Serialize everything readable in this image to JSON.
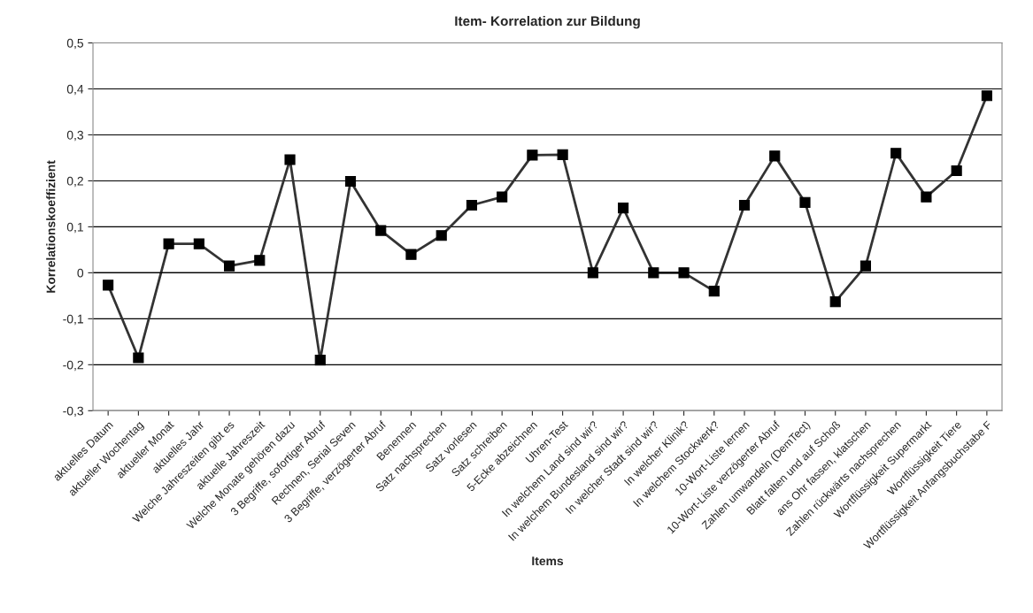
{
  "chart_data": {
    "type": "line",
    "title": "Item- Korrelation zur Bildung",
    "xlabel": "Items",
    "ylabel": "Korrelationskoeffizient",
    "categories": [
      "aktuelles Datum",
      "aktueller Wochentag",
      "aktueller Monat",
      "aktuelles Jahr",
      "Welche Jahreszeiten gibt es",
      "aktuelle Jahreszeit",
      "Welche Monate gehören dazu",
      "3 Begriffe, sofortiger Abruf",
      "Rechnen, Serial Seven",
      "3 Begriffe, verzögerter Abruf",
      "Benennen",
      "Satz nachsprechen",
      "Satz vorlesen",
      "Satz schreiben",
      "5-Ecke abzeichnen",
      "Uhren-Test",
      "In welchem Land sind wir?",
      "In welchem Bundesland sind wir?",
      "In welcher Stadt sind wir?",
      "In welcher Klinik?",
      "In welchem Stockwerk?",
      "10-Wort-Liste lernen",
      "10-Wort-Liste verzögerter Abruf",
      "Zahlen umwandeln (DemTect)",
      "Blatt falten und auf Schoß",
      "ans Ohr fassen, klatschen",
      "Zahlen rückwärts nachsprechen",
      "Wortflüssigkeit Supermarkt",
      "Wortflüssigkeit Tiere",
      "Wortflüssigkeit Anfangsbuchstabe F"
    ],
    "series": [
      {
        "color": "#333333",
        "values": [
          -0.027,
          -0.185,
          0.063,
          0.063,
          0.015,
          0.027,
          0.246,
          -0.19,
          0.199,
          0.092,
          0.04,
          0.081,
          0.147,
          0.165,
          0.256,
          0.257,
          0.0,
          0.141,
          0.0,
          0.0,
          -0.04,
          0.147,
          0.254,
          0.153,
          -0.063,
          0.015,
          0.26,
          0.165,
          0.222,
          0.385
        ]
      }
    ],
    "ylim": [
      -0.3,
      0.5
    ],
    "yticks": [
      {
        "value": -0.3,
        "label": "-0,3"
      },
      {
        "value": -0.2,
        "label": "-0,2"
      },
      {
        "value": -0.1,
        "label": "-0,1"
      },
      {
        "value": 0,
        "label": "0"
      },
      {
        "value": 0.1,
        "label": "0,1"
      },
      {
        "value": 0.2,
        "label": "0,2"
      },
      {
        "value": 0.3,
        "label": "0,3"
      },
      {
        "value": 0.4,
        "label": "0,4"
      },
      {
        "value": 0.5,
        "label": "0,5"
      }
    ],
    "grid": "y",
    "marker": "square",
    "line_style": "solid",
    "legend": false
  }
}
